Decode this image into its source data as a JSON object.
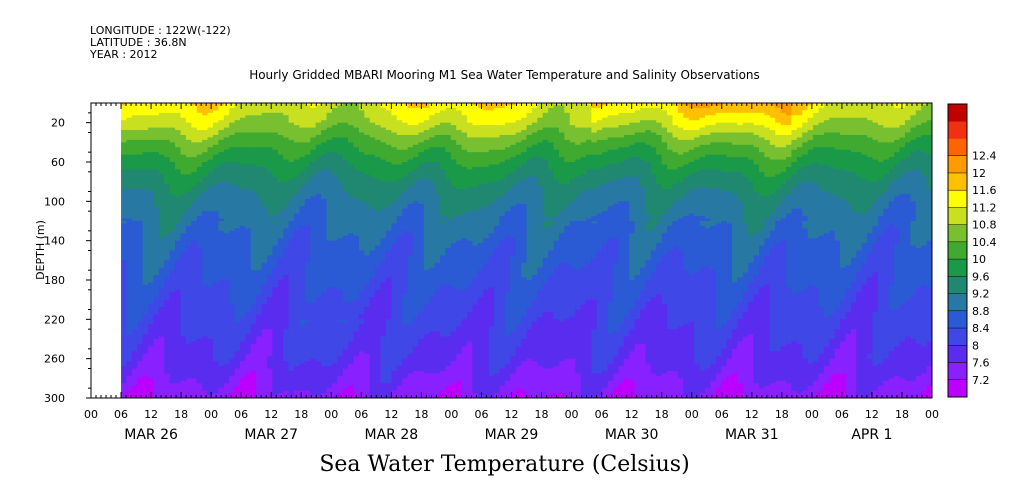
{
  "header": {
    "longitude": "LONGITUDE : 122W(-122)",
    "latitude": "LATITUDE : 36.8N",
    "year": "YEAR : 2012"
  },
  "chart_data": {
    "type": "heatmap",
    "title": "Hourly Gridded MBARI Mooring M1 Sea Water Temperature and Salinity Observations",
    "xlabel": "Sea Water Temperature (Celsius)",
    "ylabel": "DEPTH (m)",
    "ylim": [
      300,
      0
    ],
    "xlim_hours": [
      0,
      168
    ],
    "data_start_hour": 6,
    "y_ticks": [
      20,
      60,
      100,
      140,
      180,
      220,
      260,
      300
    ],
    "x_hour_ticks": [
      "00",
      "06",
      "12",
      "18",
      "00",
      "06",
      "12",
      "18",
      "00",
      "06",
      "12",
      "18",
      "00",
      "06",
      "12",
      "18",
      "00",
      "06",
      "12",
      "18",
      "00",
      "06",
      "12",
      "18",
      "00",
      "06",
      "12",
      "18",
      "00"
    ],
    "x_days": [
      "MAR 26",
      "MAR 27",
      "MAR 28",
      "MAR 29",
      "MAR 30",
      "MAR 31",
      "APR  1"
    ],
    "colorbar": {
      "levels": [
        7.2,
        7.6,
        8,
        8.4,
        8.8,
        9.2,
        9.6,
        10,
        10.4,
        10.8,
        11.2,
        11.6,
        12,
        12.4
      ],
      "colors": [
        "#bb00ff",
        "#8820ff",
        "#5a2cf0",
        "#3f47e6",
        "#2a5ad4",
        "#2878a4",
        "#208870",
        "#1a9a48",
        "#40aa30",
        "#78c030",
        "#c8e020",
        "#ffff00",
        "#ffc000",
        "#ff9a00",
        "#ff6400",
        "#f03010",
        "#c00000"
      ],
      "tick_labels": [
        "12.4",
        "12",
        "11.6",
        "11.2",
        "10.8",
        "10.4",
        "10",
        "9.6",
        "9.2",
        "8.8",
        "8.4",
        "8",
        "7.6",
        "7.2"
      ]
    },
    "depth_profile": {
      "depths": [
        0,
        10,
        20,
        30,
        40,
        60,
        80,
        100,
        140,
        180,
        220,
        260,
        300
      ],
      "temperatures": [
        11.3,
        11.1,
        10.9,
        10.6,
        10.3,
        9.8,
        9.4,
        9.1,
        8.7,
        8.4,
        8.1,
        7.8,
        7.3
      ]
    }
  }
}
